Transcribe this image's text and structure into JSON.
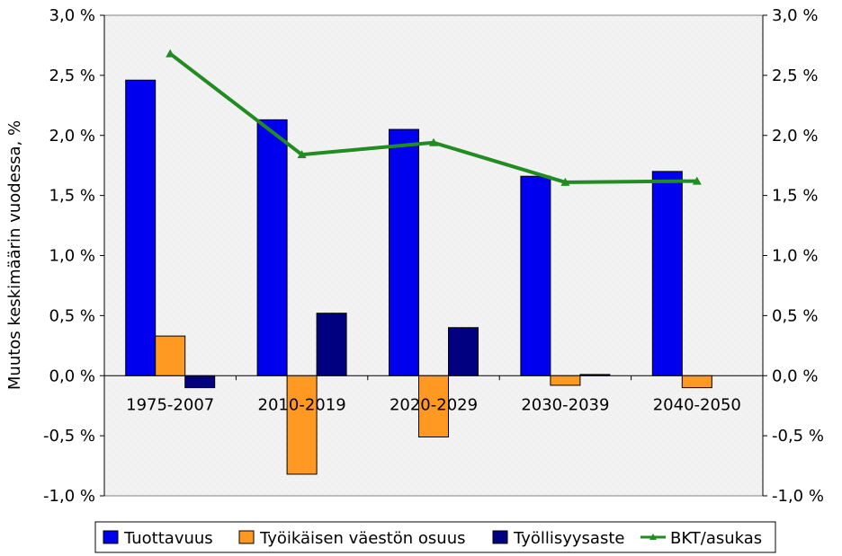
{
  "chart_data": {
    "type": "bar",
    "title": "",
    "ylabel": "Muutos keskimäärin vuodessa, %",
    "ylim": [
      -1.0,
      3.0
    ],
    "yticks": [
      "-1,0 %",
      "-0,5 %",
      "0,0 %",
      "0,5 %",
      "1,0 %",
      "1,5 %",
      "2,0 %",
      "2,5 %",
      "3,0 %"
    ],
    "ytick_values": [
      -1.0,
      -0.5,
      0.0,
      0.5,
      1.0,
      1.5,
      2.0,
      2.5,
      3.0
    ],
    "categories": [
      "1975-2007",
      "2010-2019",
      "2020-2029",
      "2030-2039",
      "2040-2050"
    ],
    "series": [
      {
        "name": "Tuottavuus",
        "kind": "bar",
        "color": "#0000ee",
        "values": [
          2.46,
          2.13,
          2.05,
          1.66,
          1.7
        ]
      },
      {
        "name": "Työikäisen väestön osuus",
        "kind": "bar",
        "color": "#ff9922",
        "values": [
          0.33,
          -0.82,
          -0.51,
          -0.08,
          -0.1
        ]
      },
      {
        "name": "Työllisyysaste",
        "kind": "bar",
        "color": "#000080",
        "values": [
          -0.1,
          0.52,
          0.4,
          0.01,
          0.0
        ]
      },
      {
        "name": "BKT/asukas",
        "kind": "line",
        "color": "#228b22",
        "values": [
          2.68,
          1.84,
          1.94,
          1.61,
          1.62
        ]
      }
    ],
    "legend_position": "bottom",
    "grid": false
  }
}
